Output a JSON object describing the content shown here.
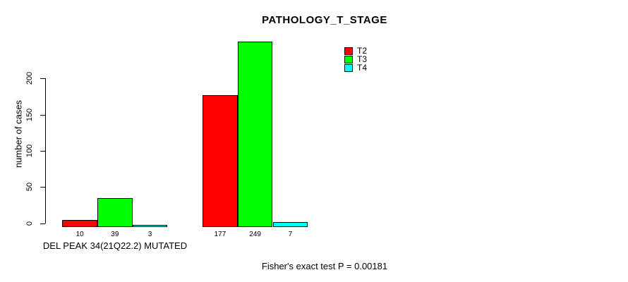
{
  "title": "PATHOLOGY_T_STAGE",
  "chart_data": {
    "type": "bar",
    "title": "PATHOLOGY_T_STAGE",
    "xlabel": "DEL PEAK 34(21Q22.2) MUTATED",
    "ylabel": "number of cases",
    "ylim": [
      0,
      250
    ],
    "y_ticks": [
      0,
      50,
      100,
      150,
      200
    ],
    "grid": false,
    "legend_position": "top-right",
    "categories": [
      "MUTATED",
      ""
    ],
    "series": [
      {
        "name": "T2",
        "color": "#ff0000",
        "values": [
          10,
          177
        ]
      },
      {
        "name": "T3",
        "color": "#00ff00",
        "values": [
          39,
          249
        ]
      },
      {
        "name": "T4",
        "color": "#00ffff",
        "values": [
          3,
          7
        ]
      }
    ],
    "bar_value_labels": [
      [
        10,
        39,
        3
      ],
      [
        177,
        249,
        7
      ]
    ],
    "annotation": "Fisher's exact test P = 0.00181"
  },
  "colors": {
    "bar_border": "#000000",
    "axis": "#000000",
    "background": "#ffffff"
  }
}
